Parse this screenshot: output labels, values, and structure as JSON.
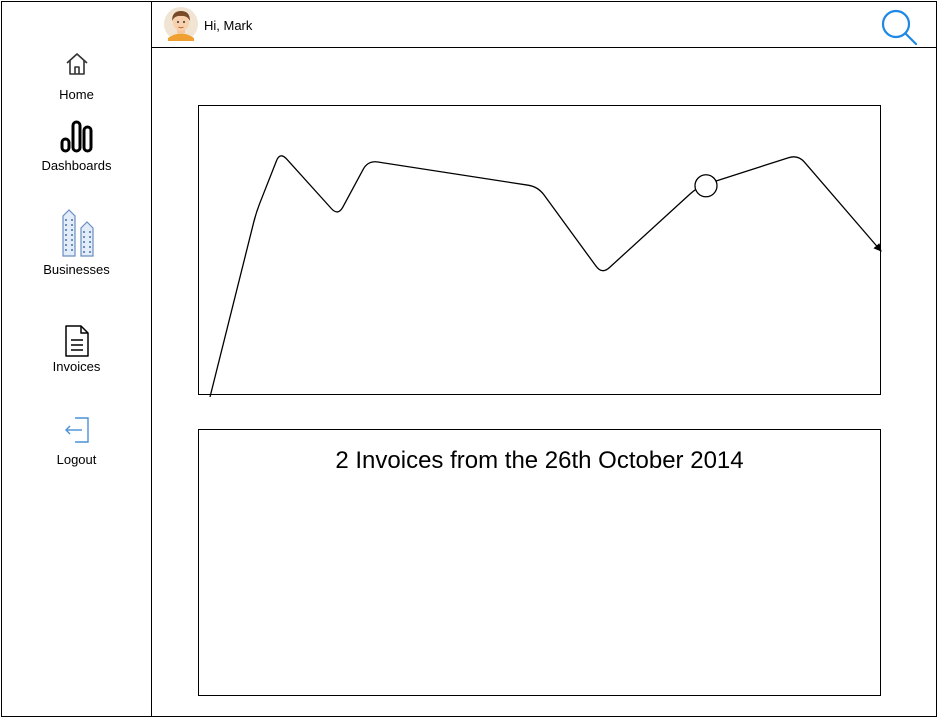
{
  "header": {
    "greeting": "Hi, Mark",
    "search_icon": "search-icon",
    "accent_color": "#1e88e5"
  },
  "sidebar": {
    "items": [
      {
        "label": "Home",
        "icon": "home-icon"
      },
      {
        "label": "Dashboards",
        "icon": "bar-chart-icon"
      },
      {
        "label": "Businesses",
        "icon": "buildings-icon"
      },
      {
        "label": "Invoices",
        "icon": "document-icon"
      },
      {
        "label": "Logout",
        "icon": "logout-icon"
      }
    ]
  },
  "main": {
    "invoice_panel": {
      "title": "2 Invoices from the 26th October 2014"
    }
  },
  "chart_data": {
    "type": "line",
    "title": "",
    "xlabel": "",
    "ylabel": "",
    "grid": false,
    "highlighted_point_index": 7,
    "series": [
      {
        "values": [
          0,
          0.63,
          0.84,
          0.62,
          0.81,
          0.72,
          0.42,
          0.72,
          0.83,
          0.5
        ]
      }
    ]
  }
}
